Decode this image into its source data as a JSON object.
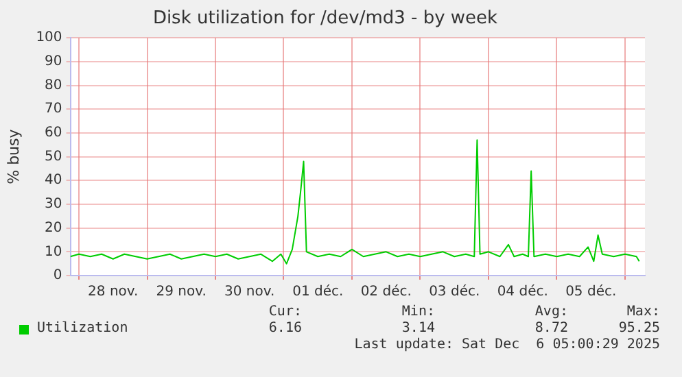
{
  "chart_data": {
    "type": "line",
    "title": "Disk utilization for /dev/md3 - by week",
    "ylabel": "% busy",
    "xlim": [
      "2025-11-27T21:00",
      "2025-12-06T07:00"
    ],
    "xticks": [
      {
        "value": "2025-11-28T00:00",
        "label": null
      },
      {
        "value": "2025-11-28T12:00",
        "label": "28 nov."
      },
      {
        "value": "2025-11-29T00:00",
        "label": null
      },
      {
        "value": "2025-11-29T12:00",
        "label": "29 nov."
      },
      {
        "value": "2025-11-30T00:00",
        "label": null
      },
      {
        "value": "2025-11-30T12:00",
        "label": "30 nov."
      },
      {
        "value": "2025-12-01T00:00",
        "label": null
      },
      {
        "value": "2025-12-01T12:00",
        "label": "01 déc."
      },
      {
        "value": "2025-12-02T00:00",
        "label": null
      },
      {
        "value": "2025-12-02T12:00",
        "label": "02 déc."
      },
      {
        "value": "2025-12-03T00:00",
        "label": null
      },
      {
        "value": "2025-12-03T12:00",
        "label": "03 déc."
      },
      {
        "value": "2025-12-04T00:00",
        "label": null
      },
      {
        "value": "2025-12-04T12:00",
        "label": "04 déc."
      },
      {
        "value": "2025-12-05T00:00",
        "label": null
      },
      {
        "value": "2025-12-05T12:00",
        "label": "05 déc."
      },
      {
        "value": "2025-12-06T00:00",
        "label": null
      }
    ],
    "ylim": [
      0,
      100
    ],
    "yticks": [
      0,
      10,
      20,
      30,
      40,
      50,
      60,
      70,
      80,
      90,
      100
    ],
    "grid": true,
    "legend": "bottom",
    "marker": "none",
    "line_style": "solid",
    "x": [
      "2025-11-27T21:00",
      "2025-11-28T00:00",
      "2025-11-28T04:00",
      "2025-11-28T08:00",
      "2025-11-28T12:00",
      "2025-11-28T16:00",
      "2025-11-28T20:00",
      "2025-11-29T00:00",
      "2025-11-29T04:00",
      "2025-11-29T08:00",
      "2025-11-29T12:00",
      "2025-11-29T16:00",
      "2025-11-29T20:00",
      "2025-11-30T00:00",
      "2025-11-30T04:00",
      "2025-11-30T08:00",
      "2025-11-30T12:00",
      "2025-11-30T16:00",
      "2025-11-30T20:00",
      "2025-11-30T23:00",
      "2025-12-01T01:00",
      "2025-12-01T03:00",
      "2025-12-01T05:00",
      "2025-12-01T06:00",
      "2025-12-01T07:00",
      "2025-12-01T08:00",
      "2025-12-01T12:00",
      "2025-12-01T16:00",
      "2025-12-01T20:00",
      "2025-12-02T00:00",
      "2025-12-02T04:00",
      "2025-12-02T08:00",
      "2025-12-02T12:00",
      "2025-12-02T16:00",
      "2025-12-02T20:00",
      "2025-12-03T00:00",
      "2025-12-03T04:00",
      "2025-12-03T08:00",
      "2025-12-03T12:00",
      "2025-12-03T16:00",
      "2025-12-03T19:00",
      "2025-12-03T20:00",
      "2025-12-03T21:00",
      "2025-12-04T00:00",
      "2025-12-04T04:00",
      "2025-12-04T07:00",
      "2025-12-04T09:00",
      "2025-12-04T12:00",
      "2025-12-04T14:00",
      "2025-12-04T15:00",
      "2025-12-04T16:00",
      "2025-12-04T20:00",
      "2025-12-05T00:00",
      "2025-12-05T04:00",
      "2025-12-05T08:00",
      "2025-12-05T11:00",
      "2025-12-05T13:00",
      "2025-12-05T14:30",
      "2025-12-05T16:00",
      "2025-12-05T20:00",
      "2025-12-06T00:00",
      "2025-12-06T04:00",
      "2025-12-06T05:00"
    ],
    "series": [
      {
        "name": "Utilization",
        "color": "#00cc00",
        "values": [
          8,
          9,
          8,
          9,
          7,
          9,
          8,
          7,
          8,
          9,
          7,
          8,
          9,
          8,
          9,
          7,
          8,
          9,
          6,
          9,
          5,
          11,
          25,
          36,
          48,
          10,
          8,
          9,
          8,
          11,
          8,
          9,
          10,
          8,
          9,
          8,
          9,
          10,
          8,
          9,
          8,
          57,
          9,
          10,
          8,
          13,
          8,
          9,
          8,
          44,
          8,
          9,
          8,
          9,
          8,
          12,
          6,
          17,
          9,
          8,
          9,
          8,
          6
        ]
      }
    ],
    "annotations": [
      "Cur:",
      "Min:",
      "Avg:",
      "Max:",
      "6.16",
      "3.14",
      "8.72",
      "95.25",
      "Last update: Sat Dec  6 05:00:29 2025"
    ]
  }
}
